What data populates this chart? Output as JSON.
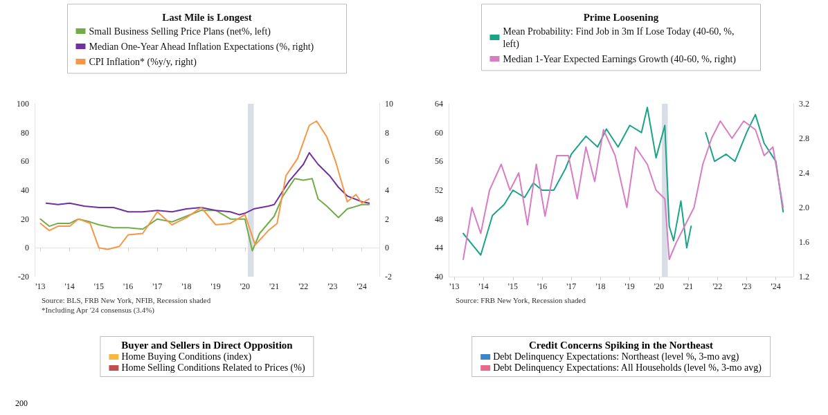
{
  "chart_data": [
    {
      "type": "line",
      "title": "Last Mile is Longest",
      "legend": "top",
      "marker": "none",
      "line_style": "solid",
      "xlim": [
        2012.8,
        2024.6
      ],
      "xticks": [
        {
          "value": 2013,
          "label": "'13"
        },
        {
          "value": 2014,
          "label": "'14"
        },
        {
          "value": 2015,
          "label": "'15"
        },
        {
          "value": 2016,
          "label": "'16"
        },
        {
          "value": 2017,
          "label": "'17"
        },
        {
          "value": 2018,
          "label": "'18"
        },
        {
          "value": 2019,
          "label": "'19"
        },
        {
          "value": 2020,
          "label": "'20"
        },
        {
          "value": 2021,
          "label": "'21"
        },
        {
          "value": 2022,
          "label": "'22"
        },
        {
          "value": 2023,
          "label": "'23"
        },
        {
          "value": 2024,
          "label": "'24"
        }
      ],
      "ylim": [
        -20,
        100
      ],
      "yticks": [
        -20,
        0,
        20,
        40,
        60,
        80,
        100
      ],
      "y2lim": [
        -2,
        10
      ],
      "y2ticks": [
        -2,
        0,
        2,
        4,
        6,
        8,
        10
      ],
      "bands": [
        {
          "axis": "x",
          "from": 2020.1,
          "to": 2020.3,
          "color": "#d9dee6"
        }
      ],
      "series": [
        {
          "name": "Small Business Selling Price Plans (net%, left)",
          "color": "#70ad47",
          "x": [
            2013,
            2013.3,
            2013.6,
            2014,
            2014.3,
            2014.7,
            2015,
            2015.5,
            2016,
            2016.5,
            2017,
            2017.5,
            2018,
            2018.5,
            2019,
            2019.5,
            2020,
            2020.25,
            2020.5,
            2021,
            2021.3,
            2021.7,
            2022,
            2022.3,
            2022.5,
            2022.8,
            2023.2,
            2023.5,
            2024,
            2024.25
          ],
          "values": [
            20,
            15,
            17,
            17,
            20,
            18,
            16,
            14,
            14,
            13,
            20,
            18,
            22,
            26,
            26,
            20,
            20,
            -2,
            10,
            22,
            36,
            48,
            47,
            48,
            34,
            29,
            21,
            27,
            30,
            30
          ]
        },
        {
          "name": "Median One-Year Ahead Inflation Expectations (%, right)",
          "color": "#7030a0",
          "axis": "y2",
          "x": [
            2013.2,
            2013.6,
            2014,
            2014.5,
            2015,
            2015.5,
            2016,
            2016.5,
            2017,
            2017.5,
            2018,
            2018.5,
            2019,
            2019.5,
            2019.8,
            2020,
            2020.3,
            2020.8,
            2021,
            2021.5,
            2022,
            2022.2,
            2022.5,
            2022.9,
            2023.2,
            2023.5,
            2024,
            2024.25
          ],
          "values": [
            3.1,
            3.0,
            3.1,
            2.9,
            2.8,
            2.8,
            2.5,
            2.5,
            2.6,
            2.5,
            2.7,
            2.8,
            2.6,
            2.5,
            2.3,
            2.4,
            2.7,
            2.9,
            3.0,
            4.6,
            5.8,
            6.6,
            5.8,
            5.0,
            4.2,
            3.6,
            3.2,
            3.1
          ]
        },
        {
          "name": "CPI Inflation* (%y/y, right)",
          "color": "#f79646",
          "axis": "y2",
          "x": [
            2013,
            2013.3,
            2013.6,
            2014,
            2014.3,
            2014.7,
            2015,
            2015.3,
            2015.7,
            2016,
            2016.5,
            2017,
            2017.5,
            2018,
            2018.5,
            2019,
            2019.5,
            2020,
            2020.35,
            2020.8,
            2021.1,
            2021.4,
            2021.8,
            2022.2,
            2022.45,
            2022.8,
            2023.1,
            2023.5,
            2023.8,
            2024,
            2024.25
          ],
          "values": [
            1.7,
            1.2,
            1.5,
            1.5,
            2.0,
            1.7,
            0.0,
            -0.1,
            0.1,
            0.9,
            1.0,
            2.5,
            1.6,
            2.1,
            2.8,
            1.6,
            1.7,
            2.3,
            0.2,
            1.2,
            1.7,
            5.0,
            6.2,
            8.5,
            8.8,
            7.7,
            6.0,
            3.2,
            3.7,
            3.1,
            3.4
          ]
        }
      ],
      "annotations": [
        "Source: BLS, FRB New York, NFIB, Recession shaded",
        "*Including Apr '24 consensus (3.4%)"
      ]
    },
    {
      "type": "line",
      "title": "Prime Loosening",
      "legend": "top",
      "marker": "none",
      "line_style": "solid",
      "xlim": [
        2012.8,
        2024.6
      ],
      "xticks": [
        {
          "value": 2013,
          "label": "'13"
        },
        {
          "value": 2014,
          "label": "'14"
        },
        {
          "value": 2015,
          "label": "'15"
        },
        {
          "value": 2016,
          "label": "'16"
        },
        {
          "value": 2017,
          "label": "'17"
        },
        {
          "value": 2018,
          "label": "'18"
        },
        {
          "value": 2019,
          "label": "'19"
        },
        {
          "value": 2020,
          "label": "'20"
        },
        {
          "value": 2021,
          "label": "'21"
        },
        {
          "value": 2022,
          "label": "'22"
        },
        {
          "value": 2023,
          "label": "'23"
        },
        {
          "value": 2024,
          "label": "'24"
        }
      ],
      "ylim": [
        40,
        64
      ],
      "yticks": [
        40,
        44,
        48,
        52,
        56,
        60,
        64
      ],
      "y2lim": [
        1.2,
        3.2
      ],
      "y2ticks": [
        1.2,
        1.6,
        {
          "value": 2,
          "label": "2.0"
        },
        2.4,
        2.8,
        3.2
      ],
      "bands": [
        {
          "axis": "x",
          "from": 2020.1,
          "to": 2020.3,
          "color": "#d9dee6"
        }
      ],
      "series": [
        {
          "name": "Mean Probability: Find Job in 3m If Lose Today (40-60, %, left)",
          "color": "#1aa385",
          "x": [
            2013.3,
            2013.6,
            2013.9,
            2014.3,
            2014.7,
            2015,
            2015.4,
            2015.7,
            2016,
            2016.4,
            2016.8,
            2017,
            2017.5,
            2017.9,
            2018.2,
            2018.6,
            2019,
            2019.4,
            2019.6,
            2019.9,
            2020.2,
            2020.35,
            2020.5,
            2020.75,
            2020.95,
            2021.1,
            2021.25,
            2021.6,
            2021.9,
            2022.3,
            2022.6,
            2023,
            2023.3,
            2023.6,
            2024,
            2024.25
          ],
          "values": [
            46,
            44.5,
            43,
            48.5,
            50,
            52,
            51,
            53,
            52,
            52,
            55,
            57,
            59.5,
            58,
            60.5,
            58,
            61,
            60,
            63.5,
            56.5,
            61,
            47,
            45,
            50.5,
            44,
            47,
            null,
            60,
            56,
            57,
            56,
            60,
            62.5,
            58.5,
            56,
            49
          ]
        },
        {
          "name": "Median 1-Year Expected Earnings Growth (40-60, %, right)",
          "color": "#d87cc3",
          "axis": "y2",
          "x": [
            2013.3,
            2013.6,
            2013.9,
            2014.2,
            2014.6,
            2014.9,
            2015.2,
            2015.5,
            2015.8,
            2016.1,
            2016.5,
            2016.9,
            2017.2,
            2017.5,
            2017.8,
            2018.1,
            2018.5,
            2018.9,
            2019.2,
            2019.6,
            2019.9,
            2020.2,
            2020.35,
            2020.6,
            2020.9,
            2021.2,
            2021.5,
            2021.8,
            2022.1,
            2022.5,
            2022.9,
            2023.3,
            2023.6,
            2023.9,
            2024.25
          ],
          "values": [
            1.4,
            2.0,
            1.7,
            2.2,
            2.5,
            2.2,
            2.4,
            1.8,
            2.5,
            1.9,
            2.6,
            2.6,
            2.1,
            2.7,
            2.3,
            2.9,
            2.6,
            2.0,
            2.7,
            2.5,
            2.2,
            2.1,
            1.4,
            1.6,
            1.8,
            2.0,
            2.5,
            2.8,
            3.0,
            2.8,
            3.0,
            2.9,
            2.6,
            2.7,
            2.0
          ]
        }
      ],
      "annotations": [
        "Source: FRB New York, Recession shaded"
      ]
    },
    {
      "type": "other",
      "title": "Buyer and Sellers in Direct Opposition",
      "legend": "top",
      "series": [
        {
          "name": "Home Buying Conditions (index)",
          "color": "#f5b942"
        },
        {
          "name": "Home Selling Conditions Related to Prices (%)",
          "color": "#c0504d"
        }
      ],
      "annotations": [
        "200"
      ]
    },
    {
      "type": "other",
      "title": "Credit Concerns Spiking in the Northeast",
      "legend": "top",
      "series": [
        {
          "name": "Debt Delinquency Expectations: Northeast (level %, 3-mo avg)",
          "color": "#3d85c6"
        },
        {
          "name": "Debt Delinquency Expectations: All Households (level %, 3-mo avg)",
          "color": "#e86a8a"
        }
      ]
    }
  ]
}
